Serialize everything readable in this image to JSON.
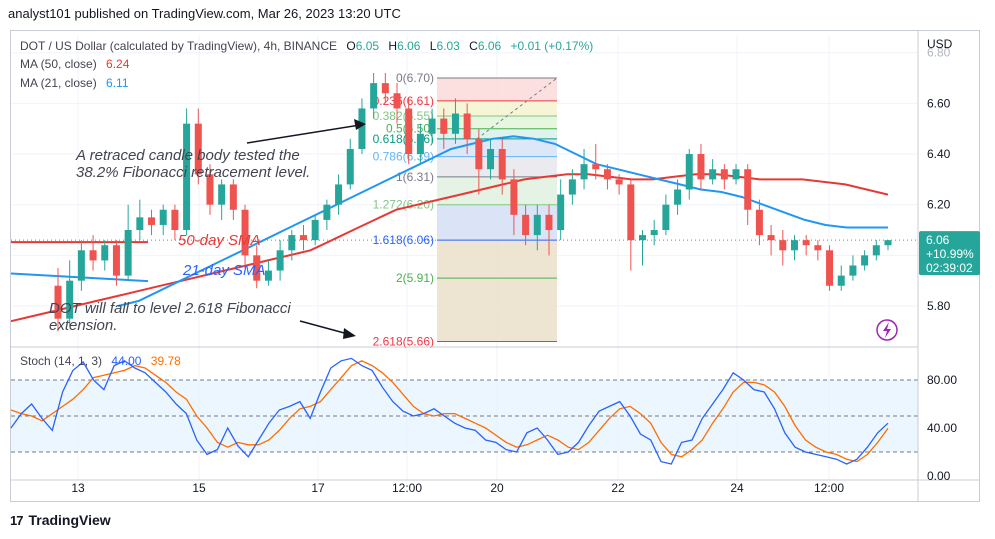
{
  "header": {
    "text": "analyst101 published on TradingView.com, Mar 26, 2023 13:20 UTC"
  },
  "legend": {
    "symbol": "DOT / US Dollar (calculated by TradingView), 4h, BINANCE",
    "ohlc": {
      "o_label": "O",
      "o": "6.05",
      "h_label": "H",
      "h": "6.06",
      "l_label": "L",
      "l": "6.03",
      "c_label": "C",
      "c": "6.06",
      "chg": "+0.01 (+0.17%)"
    },
    "ma50_label": "MA (50, close)",
    "ma50_value": "6.24",
    "ma21_label": "MA (21, close)",
    "ma21_value": "6.11",
    "stoch_label": "Stoch (14, 1, 3)",
    "stoch_k": "44.00",
    "stoch_d": "39.78"
  },
  "colors": {
    "up": "#26a69a",
    "down": "#ef5350",
    "ma50": "#e53935",
    "ma21": "#2196f3",
    "stoch_k": "#2962ff",
    "stoch_d": "#ff6d00",
    "price_tag": "#26a69a",
    "lightning": "#9c27b0"
  },
  "axis": {
    "currency": "USD",
    "price_ticks": [
      "6.80",
      "6.60",
      "6.40",
      "6.20",
      "6.00",
      "5.80"
    ],
    "stoch_ticks": [
      "80.00",
      "40.00",
      "0.00"
    ],
    "x_ticks": [
      "13",
      "15",
      "17",
      "12:00",
      "20",
      "22",
      "24",
      "12:00"
    ]
  },
  "price_tag": {
    "price": "6.06",
    "change": "+10.99%",
    "countdown": "02:39:02"
  },
  "annotations": {
    "a1": "A retraced candle body tested the 38.2% Fibonacci retracement level.",
    "a2": "50-day SMA",
    "a3": "21-day SMA",
    "a4": "DOT  will fall to level 2.618 Fibonacci extension."
  },
  "branding": {
    "logo_text": "TradingView",
    "logo_mark": "17"
  },
  "chart_data": {
    "type": "candlestick",
    "title": "DOT / US Dollar (calculated by TradingView), 4h, BINANCE",
    "ylim": [
      5.65,
      6.87
    ],
    "candles": [
      [
        5.88,
        5.75,
        5.95,
        5.7
      ],
      [
        5.75,
        5.9,
        5.98,
        5.72
      ],
      [
        5.9,
        6.02,
        6.06,
        5.86
      ],
      [
        6.02,
        5.98,
        6.08,
        5.94
      ],
      [
        5.98,
        6.04,
        6.06,
        5.94
      ],
      [
        6.04,
        5.92,
        6.06,
        5.88
      ],
      [
        5.92,
        6.1,
        6.2,
        5.9
      ],
      [
        6.1,
        6.15,
        6.22,
        6.06
      ],
      [
        6.15,
        6.12,
        6.18,
        6.08
      ],
      [
        6.12,
        6.18,
        6.2,
        6.08
      ],
      [
        6.18,
        6.1,
        6.2,
        6.06
      ],
      [
        6.1,
        6.52,
        6.58,
        6.08
      ],
      [
        6.52,
        6.32,
        6.58,
        6.28
      ],
      [
        6.32,
        6.2,
        6.36,
        6.16
      ],
      [
        6.2,
        6.28,
        6.3,
        6.14
      ],
      [
        6.28,
        6.18,
        6.3,
        6.14
      ],
      [
        6.18,
        6.0,
        6.2,
        5.95
      ],
      [
        6.0,
        5.9,
        6.04,
        5.87
      ],
      [
        5.9,
        5.94,
        5.98,
        5.88
      ],
      [
        5.94,
        6.02,
        6.06,
        5.9
      ],
      [
        6.02,
        6.08,
        6.1,
        5.98
      ],
      [
        6.08,
        6.06,
        6.12,
        6.02
      ],
      [
        6.06,
        6.14,
        6.16,
        6.04
      ],
      [
        6.14,
        6.2,
        6.22,
        6.1
      ],
      [
        6.2,
        6.28,
        6.32,
        6.16
      ],
      [
        6.28,
        6.42,
        6.46,
        6.26
      ],
      [
        6.42,
        6.58,
        6.62,
        6.4
      ],
      [
        6.58,
        6.68,
        6.72,
        6.54
      ],
      [
        6.68,
        6.64,
        6.72,
        6.6
      ],
      [
        6.64,
        6.58,
        6.68,
        6.52
      ],
      [
        6.58,
        6.4,
        6.62,
        6.36
      ],
      [
        6.4,
        6.48,
        6.52,
        6.36
      ],
      [
        6.48,
        6.54,
        6.58,
        6.44
      ],
      [
        6.54,
        6.48,
        6.58,
        6.42
      ],
      [
        6.48,
        6.56,
        6.62,
        6.44
      ],
      [
        6.56,
        6.46,
        6.6,
        6.4
      ],
      [
        6.46,
        6.34,
        6.5,
        6.24
      ],
      [
        6.34,
        6.42,
        6.46,
        6.3
      ],
      [
        6.42,
        6.3,
        6.46,
        6.24
      ],
      [
        6.3,
        6.16,
        6.34,
        6.08
      ],
      [
        6.16,
        6.08,
        6.2,
        6.04
      ],
      [
        6.08,
        6.16,
        6.2,
        6.02
      ],
      [
        6.16,
        6.1,
        6.2,
        6.0
      ],
      [
        6.1,
        6.24,
        6.3,
        6.06
      ],
      [
        6.24,
        6.3,
        6.34,
        6.2
      ],
      [
        6.3,
        6.36,
        6.42,
        6.26
      ],
      [
        6.36,
        6.34,
        6.44,
        6.3
      ],
      [
        6.34,
        6.3,
        6.36,
        6.26
      ],
      [
        6.3,
        6.28,
        6.32,
        6.24
      ],
      [
        6.28,
        6.06,
        6.3,
        5.94
      ],
      [
        6.06,
        6.08,
        6.1,
        5.96
      ],
      [
        6.08,
        6.1,
        6.14,
        6.04
      ],
      [
        6.1,
        6.2,
        6.24,
        6.08
      ],
      [
        6.2,
        6.26,
        6.3,
        6.16
      ],
      [
        6.26,
        6.4,
        6.42,
        6.22
      ],
      [
        6.4,
        6.3,
        6.44,
        6.26
      ],
      [
        6.3,
        6.34,
        6.38,
        6.28
      ],
      [
        6.34,
        6.3,
        6.36,
        6.26
      ],
      [
        6.3,
        6.34,
        6.36,
        6.28
      ],
      [
        6.34,
        6.18,
        6.36,
        6.12
      ],
      [
        6.18,
        6.08,
        6.22,
        6.04
      ],
      [
        6.08,
        6.06,
        6.12,
        6.0
      ],
      [
        6.06,
        6.02,
        6.1,
        5.96
      ],
      [
        6.02,
        6.06,
        6.08,
        5.98
      ],
      [
        6.06,
        6.04,
        6.08,
        6.0
      ],
      [
        6.04,
        6.02,
        6.06,
        5.98
      ],
      [
        6.02,
        5.88,
        6.04,
        5.86
      ],
      [
        5.88,
        5.92,
        5.96,
        5.86
      ],
      [
        5.92,
        5.96,
        6.0,
        5.9
      ],
      [
        5.96,
        6.0,
        6.02,
        5.94
      ],
      [
        6.0,
        6.04,
        6.06,
        5.98
      ],
      [
        6.04,
        6.06,
        6.06,
        6.02
      ]
    ],
    "ma50": [
      5.74,
      5.76,
      5.78,
      5.8,
      5.82,
      5.84,
      5.86,
      5.88,
      5.9,
      5.92,
      5.94,
      5.96,
      5.98,
      6.0,
      6.02,
      6.06,
      6.1,
      6.14,
      6.18,
      6.2,
      6.22,
      6.24,
      6.26,
      6.28,
      6.3,
      6.31,
      6.32,
      6.32,
      6.31,
      6.3,
      6.3,
      6.31,
      6.32,
      6.32,
      6.31,
      6.3,
      6.3,
      6.3,
      6.29,
      6.28,
      6.26,
      6.24
    ],
    "ma21": [
      5.8,
      5.82,
      5.86,
      5.9,
      5.94,
      5.98,
      6.02,
      6.06,
      6.1,
      6.14,
      6.18,
      6.22,
      6.26,
      6.3,
      6.34,
      6.38,
      6.42,
      6.44,
      6.46,
      6.47,
      6.46,
      6.44,
      6.4,
      6.36,
      6.34,
      6.32,
      6.3,
      6.28,
      6.26,
      6.25,
      6.23,
      6.2,
      6.17,
      6.14,
      6.12,
      6.11,
      6.11,
      6.11
    ],
    "fib_levels": [
      {
        "label": "0(6.70)",
        "ratio": "0",
        "price": 6.7,
        "color": "#787b86"
      },
      {
        "label": "0.236(6.61)",
        "ratio": "0.236",
        "price": 6.61,
        "color": "#f23645"
      },
      {
        "label": "0.382(6.55)",
        "ratio": "0.382",
        "price": 6.55,
        "color": "#81c784"
      },
      {
        "label": "0.5(6.50)",
        "ratio": "0.5",
        "price": 6.5,
        "color": "#4caf50"
      },
      {
        "label": "0.618(6.46)",
        "ratio": "0.618",
        "price": 6.46,
        "color": "#089981"
      },
      {
        "label": "0.786(6.39)",
        "ratio": "0.786",
        "price": 6.39,
        "color": "#64b5f6"
      },
      {
        "label": "1(6.31)",
        "ratio": "1",
        "price": 6.31,
        "color": "#787b86"
      },
      {
        "label": "1.272(6.20)",
        "ratio": "1.272",
        "price": 6.2,
        "color": "#81c784"
      },
      {
        "label": "1.618(6.06)",
        "ratio": "1.618",
        "price": 6.06,
        "color": "#2962ff"
      },
      {
        "label": "2(5.91)",
        "ratio": "2",
        "price": 5.91,
        "color": "#4caf50"
      },
      {
        "label": "2.618(5.66)",
        "ratio": "2.618",
        "price": 5.66,
        "color": "#f23645"
      }
    ],
    "stoch": {
      "ylim": [
        0,
        100
      ],
      "k": [
        40,
        52,
        60,
        48,
        38,
        70,
        88,
        95,
        80,
        72,
        92,
        96,
        90,
        86,
        78,
        70,
        60,
        52,
        30,
        18,
        22,
        40,
        25,
        16,
        30,
        44,
        55,
        58,
        62,
        48,
        70,
        90,
        96,
        98,
        92,
        88,
        74,
        62,
        54,
        50,
        52,
        56,
        50,
        44,
        40,
        38,
        30,
        28,
        22,
        20,
        36,
        40,
        30,
        18,
        20,
        28,
        42,
        54,
        58,
        62,
        50,
        35,
        30,
        12,
        10,
        28,
        30,
        48,
        60,
        72,
        86,
        80,
        72,
        70,
        56,
        36,
        24,
        20,
        18,
        16,
        14,
        10,
        14,
        24,
        36,
        44
      ],
      "d": [
        55,
        52,
        50,
        46,
        52,
        58,
        64,
        72,
        82,
        84,
        86,
        88,
        92,
        90,
        84,
        78,
        70,
        64,
        50,
        40,
        28,
        24,
        28,
        26,
        26,
        30,
        38,
        48,
        56,
        58,
        62,
        72,
        82,
        92,
        96,
        92,
        86,
        78,
        68,
        58,
        52,
        50,
        52,
        52,
        48,
        44,
        40,
        34,
        28,
        24,
        26,
        30,
        34,
        30,
        24,
        22,
        28,
        38,
        48,
        56,
        58,
        52,
        44,
        28,
        18,
        16,
        22,
        30,
        44,
        56,
        70,
        78,
        78,
        76,
        70,
        58,
        42,
        30,
        24,
        20,
        18,
        14,
        12,
        18,
        28,
        39.78
      ]
    }
  }
}
